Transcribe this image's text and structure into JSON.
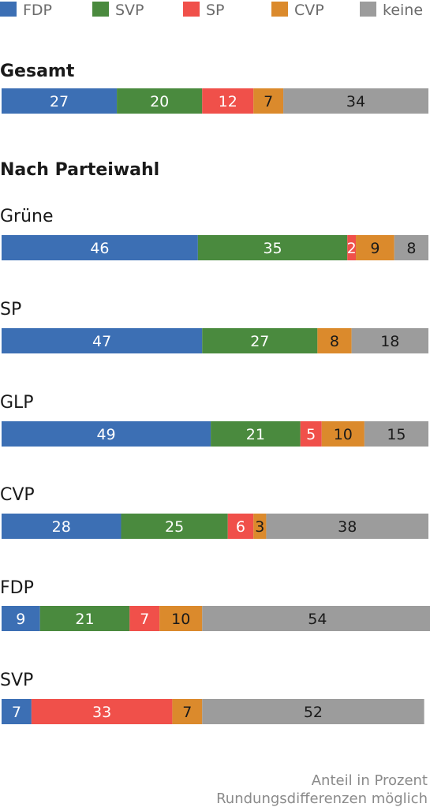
{
  "chart_data": {
    "type": "bar",
    "orientation": "horizontal",
    "stacked": true,
    "legend_position": "top",
    "grid": false,
    "series": [
      {
        "name": "FDP",
        "color": "#3c6fb4",
        "text_color": "#ffffff"
      },
      {
        "name": "SVP",
        "color": "#4a8a3e",
        "text_color": "#ffffff"
      },
      {
        "name": "SP",
        "color": "#f0504a",
        "text_color": "#ffffff"
      },
      {
        "name": "CVP",
        "color": "#db8a2c",
        "text_color": "#1a1a1a"
      },
      {
        "name": "keine",
        "color": "#9c9c9c",
        "text_color": "#1a1a1a"
      }
    ],
    "section_total": "Gesamt",
    "section_party": "Nach Parteiwahl",
    "rows": [
      {
        "label": "",
        "values": [
          27,
          20,
          12,
          7,
          34
        ]
      },
      {
        "label": "Grüne",
        "values": [
          46,
          35,
          2,
          9,
          8
        ]
      },
      {
        "label": "SP",
        "values": [
          47,
          27,
          null,
          8,
          18
        ]
      },
      {
        "label": "GLP",
        "values": [
          49,
          21,
          5,
          10,
          15
        ]
      },
      {
        "label": "CVP",
        "values": [
          28,
          25,
          6,
          3,
          38
        ]
      },
      {
        "label": "FDP",
        "values": [
          9,
          21,
          7,
          10,
          54
        ]
      },
      {
        "label": "SVP",
        "values": [
          7,
          null,
          33,
          7,
          52
        ]
      }
    ],
    "notes": [
      "Anteil in Prozent",
      "Rundungsdifferenzen möglich"
    ]
  }
}
